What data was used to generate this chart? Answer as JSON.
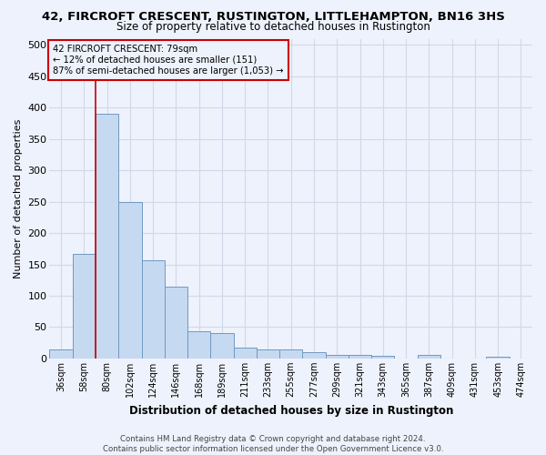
{
  "title": "42, FIRCROFT CRESCENT, RUSTINGTON, LITTLEHAMPTON, BN16 3HS",
  "subtitle": "Size of property relative to detached houses in Rustington",
  "xlabel": "Distribution of detached houses by size in Rustington",
  "ylabel": "Number of detached properties",
  "categories": [
    "36sqm",
    "58sqm",
    "80sqm",
    "102sqm",
    "124sqm",
    "146sqm",
    "168sqm",
    "189sqm",
    "211sqm",
    "233sqm",
    "255sqm",
    "277sqm",
    "299sqm",
    "321sqm",
    "343sqm",
    "365sqm",
    "387sqm",
    "409sqm",
    "431sqm",
    "453sqm",
    "474sqm"
  ],
  "values": [
    14,
    167,
    390,
    250,
    157,
    115,
    44,
    40,
    17,
    15,
    15,
    10,
    6,
    6,
    4,
    0,
    6,
    0,
    0,
    3,
    0
  ],
  "bar_color": "#c5d9f1",
  "bar_edge_color": "#7099c2",
  "background_color": "#eef2fc",
  "grid_color": "#d0d8e8",
  "plot_bg_color": "#eef2fc",
  "red_line_x": 2,
  "annotation_text": "42 FIRCROFT CRESCENT: 79sqm\n← 12% of detached houses are smaller (151)\n87% of semi-detached houses are larger (1,053) →",
  "annotation_box_edge": "#cc0000",
  "footer_line1": "Contains HM Land Registry data © Crown copyright and database right 2024.",
  "footer_line2": "Contains public sector information licensed under the Open Government Licence v3.0.",
  "ylim": [
    0,
    510
  ],
  "yticks": [
    0,
    50,
    100,
    150,
    200,
    250,
    300,
    350,
    400,
    450,
    500
  ]
}
